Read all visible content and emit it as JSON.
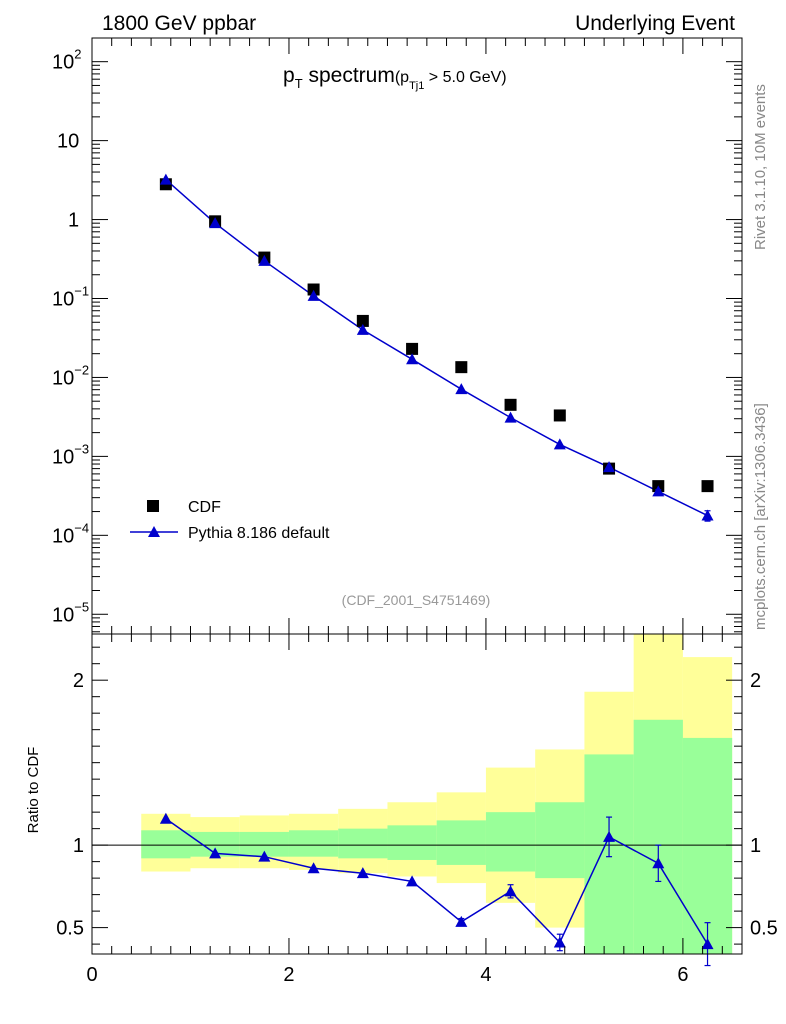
{
  "header": {
    "left": "1800 GeV ppbar",
    "right": "Underlying Event"
  },
  "side": {
    "rivet": "Rivet 3.1.10,  10M events",
    "mcplots": "mcplots.cern.ch [arXiv:1306.3436]"
  },
  "colors": {
    "mc": "#0000cc",
    "data": "#000000",
    "band_outer": "#ffff99",
    "band_inner": "#99ff99"
  },
  "chart_data": [
    {
      "type": "scatter",
      "panel": "main",
      "title": {
        "main": "p",
        "main_sub": "T",
        "rest": " spectrum",
        "cut_open": "(p",
        "cut_sub": "Tj1",
        "cut_rest": " > 5.0 GeV)"
      },
      "analysis_tag": "(CDF_2001_S4751469)",
      "yscale": "log",
      "xlim": [
        0,
        6.6
      ],
      "ylim_exp": [
        -5.25,
        2.3
      ],
      "ytick_labels": [
        {
          "exp": 2,
          "base": "10",
          "sup": "2"
        },
        {
          "exp": 1,
          "base": "10",
          "sup": ""
        },
        {
          "exp": 0,
          "base": "1",
          "sup": ""
        },
        {
          "exp": -1,
          "base": "10",
          "sup": "−1"
        },
        {
          "exp": -2,
          "base": "10",
          "sup": "−2"
        },
        {
          "exp": -3,
          "base": "10",
          "sup": "−3"
        },
        {
          "exp": -4,
          "base": "10",
          "sup": "−4"
        },
        {
          "exp": -5,
          "base": "10",
          "sup": "−5"
        }
      ],
      "legend_position": "lower-left",
      "series": [
        {
          "name": "CDF",
          "marker": "square",
          "x": [
            0.75,
            1.25,
            1.75,
            2.25,
            2.75,
            3.25,
            3.75,
            4.25,
            4.75,
            5.25,
            5.75,
            6.25
          ],
          "y": [
            2.8,
            0.95,
            0.33,
            0.13,
            0.052,
            0.023,
            0.0135,
            0.0045,
            0.0033,
            0.0007,
            0.00042,
            0.00042
          ]
        },
        {
          "name": "Pythia 8.186 default",
          "marker": "triangle",
          "x": [
            0.75,
            1.25,
            1.75,
            2.25,
            2.75,
            3.25,
            3.75,
            4.25,
            4.75,
            5.25,
            5.75,
            6.25
          ],
          "y": [
            3.2,
            0.9,
            0.3,
            0.108,
            0.04,
            0.017,
            0.0071,
            0.0031,
            0.00142,
            0.00073,
            0.00036,
            0.000178
          ],
          "yerr_rel": [
            0,
            0,
            0,
            0,
            0,
            0,
            0,
            0,
            0,
            0,
            0.05,
            0.15
          ]
        }
      ]
    },
    {
      "type": "line",
      "panel": "ratio",
      "ylabel": "Ratio to CDF",
      "xlim": [
        0,
        6.6
      ],
      "ylim": [
        0.34,
        2.28
      ],
      "xticks": [
        0,
        2,
        4,
        6
      ],
      "xtick_labels": [
        "0",
        "2",
        "4",
        "6"
      ],
      "yticks": [
        0.5,
        1,
        2
      ],
      "ytick_labels": [
        "0.5",
        "1",
        "2"
      ],
      "band_edges": [
        0.5,
        1.0,
        1.5,
        2.0,
        2.5,
        3.0,
        3.5,
        4.0,
        4.5,
        5.0,
        5.5,
        6.0,
        6.5
      ],
      "band_inner": {
        "lo": [
          0.92,
          0.93,
          0.93,
          0.93,
          0.92,
          0.91,
          0.88,
          0.84,
          0.8,
          0.32,
          0.32,
          0.32
        ],
        "hi": [
          1.09,
          1.08,
          1.08,
          1.09,
          1.1,
          1.12,
          1.15,
          1.2,
          1.26,
          1.55,
          1.76,
          1.65
        ]
      },
      "band_outer": {
        "lo": [
          0.84,
          0.86,
          0.86,
          0.85,
          0.83,
          0.81,
          0.77,
          0.65,
          0.5,
          0.55,
          0.34,
          0.34
        ],
        "hi": [
          1.19,
          1.17,
          1.18,
          1.19,
          1.22,
          1.26,
          1.32,
          1.47,
          1.58,
          1.93,
          2.28,
          2.14
        ]
      },
      "x": [
        0.75,
        1.25,
        1.75,
        2.25,
        2.75,
        3.25,
        3.75,
        4.25,
        4.75,
        5.25,
        5.75,
        6.25
      ],
      "y": [
        1.16,
        0.95,
        0.93,
        0.86,
        0.83,
        0.78,
        0.535,
        0.72,
        0.41,
        1.05,
        0.89,
        0.4
      ],
      "yerr": [
        0,
        0,
        0,
        0,
        0,
        0,
        0.02,
        0.04,
        0.05,
        0.12,
        0.11,
        0.13
      ],
      "reference_line": 1
    }
  ]
}
